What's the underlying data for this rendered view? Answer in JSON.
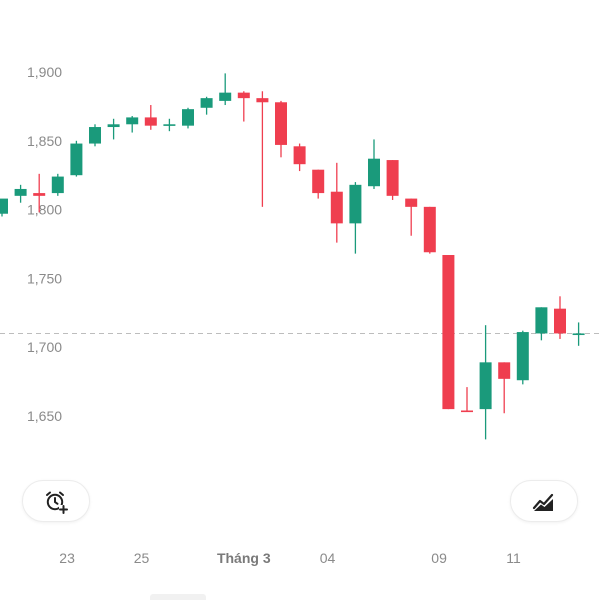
{
  "colors": {
    "up": "#1a9a7b",
    "down": "#ef3e4f",
    "grid_line": "#bdbdbd",
    "axis_text": "#8a8a8a"
  },
  "buttons": {
    "alert_icon": "alarm-clock-plus-icon",
    "indicator_icon": "line-chart-icon"
  },
  "chart_data": {
    "type": "candlestick",
    "yaxis": {
      "ticks": [
        "1,900",
        "1,850",
        "1,800",
        "1,750",
        "1,700",
        "1,650"
      ],
      "tick_values": [
        1900,
        1850,
        1800,
        1750,
        1700,
        1650
      ],
      "range": [
        1620,
        1920
      ]
    },
    "xaxis": {
      "ticks": [
        {
          "label": "23",
          "index": 3.5,
          "bold": false
        },
        {
          "label": "25",
          "index": 7.5,
          "bold": false
        },
        {
          "label": "Tháng 3",
          "index": 13,
          "bold": true
        },
        {
          "label": "04",
          "index": 17.5,
          "bold": false
        },
        {
          "label": "09",
          "index": 23.5,
          "bold": false
        },
        {
          "label": "11",
          "index": 27.5,
          "bold": false
        }
      ]
    },
    "reference_line": 1710,
    "candles": [
      {
        "o": 1797,
        "h": 1806,
        "l": 1795,
        "c": 1808
      },
      {
        "o": 1810,
        "h": 1818,
        "l": 1805,
        "c": 1815
      },
      {
        "o": 1812,
        "h": 1826,
        "l": 1798,
        "c": 1810
      },
      {
        "o": 1812,
        "h": 1826,
        "l": 1810,
        "c": 1824
      },
      {
        "o": 1825,
        "h": 1850,
        "l": 1824,
        "c": 1848
      },
      {
        "o": 1848,
        "h": 1862,
        "l": 1846,
        "c": 1860
      },
      {
        "o": 1860,
        "h": 1866,
        "l": 1851,
        "c": 1862
      },
      {
        "o": 1862,
        "h": 1868,
        "l": 1856,
        "c": 1867
      },
      {
        "o": 1867,
        "h": 1876,
        "l": 1858,
        "c": 1861
      },
      {
        "o": 1862,
        "h": 1866,
        "l": 1857,
        "c": 1862
      },
      {
        "o": 1861,
        "h": 1874,
        "l": 1859,
        "c": 1873
      },
      {
        "o": 1874,
        "h": 1882,
        "l": 1869,
        "c": 1881
      },
      {
        "o": 1879,
        "h": 1899,
        "l": 1876,
        "c": 1885
      },
      {
        "o": 1885,
        "h": 1886,
        "l": 1864,
        "c": 1881
      },
      {
        "o": 1881,
        "h": 1886,
        "l": 1802,
        "c": 1878
      },
      {
        "o": 1878,
        "h": 1879,
        "l": 1838,
        "c": 1847
      },
      {
        "o": 1846,
        "h": 1848,
        "l": 1828,
        "c": 1833
      },
      {
        "o": 1829,
        "h": 1829,
        "l": 1808,
        "c": 1812
      },
      {
        "o": 1813,
        "h": 1834,
        "l": 1776,
        "c": 1790
      },
      {
        "o": 1790,
        "h": 1820,
        "l": 1768,
        "c": 1818
      },
      {
        "o": 1817,
        "h": 1851,
        "l": 1815,
        "c": 1837
      },
      {
        "o": 1836,
        "h": 1836,
        "l": 1807,
        "c": 1810
      },
      {
        "o": 1808,
        "h": 1808,
        "l": 1781,
        "c": 1802
      },
      {
        "o": 1802,
        "h": 1802,
        "l": 1768,
        "c": 1769
      },
      {
        "o": 1767,
        "h": 1767,
        "l": 1655,
        "c": 1655
      },
      {
        "o": 1654,
        "h": 1671,
        "l": 1653,
        "c": 1653
      },
      {
        "o": 1655,
        "h": 1716,
        "l": 1633,
        "c": 1689
      },
      {
        "o": 1689,
        "h": 1689,
        "l": 1652,
        "c": 1677
      },
      {
        "o": 1676,
        "h": 1712,
        "l": 1673,
        "c": 1711
      },
      {
        "o": 1710,
        "h": 1729,
        "l": 1705,
        "c": 1729
      },
      {
        "o": 1728,
        "h": 1737,
        "l": 1706,
        "c": 1710
      },
      {
        "o": 1710,
        "h": 1718,
        "l": 1701,
        "c": 1710
      }
    ]
  }
}
